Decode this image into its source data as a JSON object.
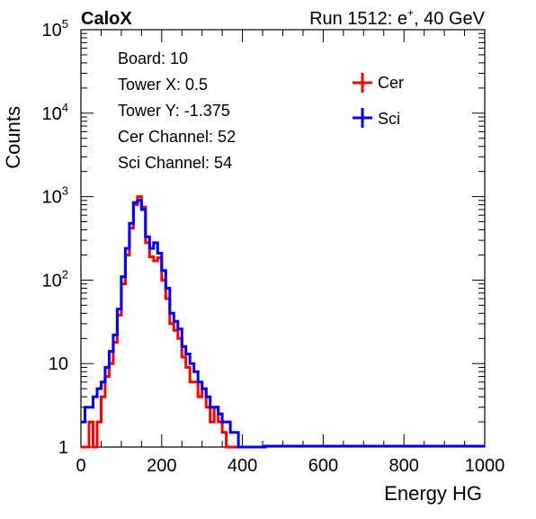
{
  "header": {
    "left": "CaloX",
    "right_prefix": "Run 1512: e",
    "right_sup": "+",
    "right_suffix": ", 40 GeV"
  },
  "info": {
    "lines": [
      "Board: 10",
      "Tower X: 0.5",
      "Tower Y: -1.375",
      "Cer Channel: 52",
      "Sci Channel: 54"
    ]
  },
  "chart_data": {
    "type": "line",
    "title": "",
    "xlabel": "Energy HG",
    "ylabel": "Counts",
    "xlim": [
      0,
      1000
    ],
    "ylim": [
      1,
      100000
    ],
    "yscale": "log",
    "xticks": [
      "0",
      "200",
      "400",
      "600",
      "800",
      "1000"
    ],
    "yticks": [
      {
        "base": "1",
        "exp": ""
      },
      {
        "base": "10",
        "exp": ""
      },
      {
        "base": "10",
        "exp": "2"
      },
      {
        "base": "10",
        "exp": "3"
      },
      {
        "base": "10",
        "exp": "4"
      },
      {
        "base": "10",
        "exp": "5"
      }
    ],
    "legend_position": "top-right",
    "series": [
      {
        "name": "Cer",
        "color": "#ff0000",
        "x": [
          0,
          10,
          20,
          30,
          40,
          50,
          60,
          70,
          80,
          90,
          100,
          110,
          120,
          130,
          140,
          150,
          160,
          170,
          180,
          190,
          200,
          210,
          220,
          230,
          240,
          250,
          260,
          270,
          280,
          290,
          300,
          310,
          320,
          330,
          340,
          350,
          360,
          370,
          380,
          390,
          400,
          410,
          420,
          430,
          440,
          450
        ],
        "y": [
          1,
          1,
          2,
          1,
          2,
          4,
          7,
          10,
          18,
          38,
          90,
          200,
          420,
          800,
          1000,
          750,
          280,
          190,
          170,
          185,
          100,
          60,
          30,
          25,
          20,
          12,
          9,
          6,
          6,
          4,
          5,
          3,
          2,
          3,
          2,
          1.5,
          1,
          1,
          1,
          1,
          1,
          1,
          1,
          1,
          1,
          1
        ]
      },
      {
        "name": "Sci",
        "color": "#0000ff",
        "x": [
          0,
          10,
          20,
          30,
          40,
          50,
          60,
          70,
          80,
          90,
          100,
          110,
          120,
          130,
          140,
          150,
          160,
          170,
          180,
          190,
          200,
          210,
          220,
          230,
          240,
          250,
          260,
          270,
          280,
          290,
          300,
          310,
          320,
          330,
          340,
          350,
          360,
          370,
          380,
          390,
          400,
          410,
          420,
          430,
          440,
          450
        ],
        "y": [
          2,
          3,
          3,
          4,
          5,
          6,
          9,
          14,
          22,
          45,
          110,
          240,
          480,
          850,
          900,
          700,
          330,
          240,
          280,
          210,
          130,
          80,
          40,
          32,
          26,
          16,
          13,
          10,
          8,
          6,
          5,
          4,
          3,
          3,
          2.5,
          2,
          2,
          1.5,
          1.5,
          1,
          1,
          1,
          1,
          1,
          1,
          1
        ]
      }
    ]
  }
}
